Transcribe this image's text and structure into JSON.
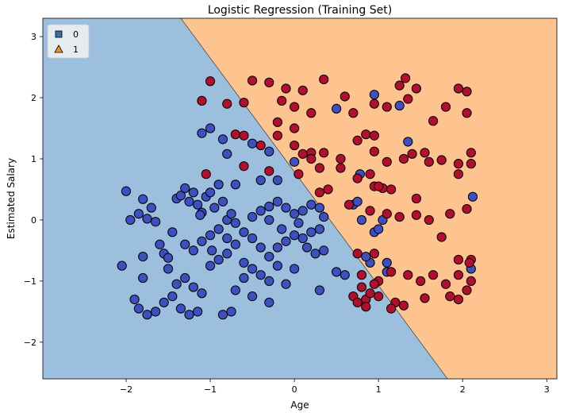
{
  "chart_data": {
    "type": "scatter",
    "title": "Logistic Regression (Training Set)",
    "xlabel": "Age",
    "ylabel": "Estimated Salary",
    "xlim": [
      -2.99,
      3.12
    ],
    "ylim": [
      -2.6,
      3.3
    ],
    "xticks": [
      -2,
      -1,
      0,
      1,
      2,
      3
    ],
    "yticks": [
      -2,
      -1,
      0,
      1,
      2,
      3
    ],
    "grid": false,
    "legend_position": "top-left",
    "decision_boundary": {
      "points": [
        [
          -1.35,
          3.3
        ],
        [
          1.82,
          -2.6
        ]
      ]
    },
    "regions": [
      {
        "class": "0",
        "color": "#9bbfdd"
      },
      {
        "class": "1",
        "color": "#fdc490"
      }
    ],
    "legend": [
      {
        "label": "0",
        "marker": "square",
        "color": "#3a6ea5"
      },
      {
        "label": "1",
        "marker": "triangle",
        "color": "#f28e2b"
      }
    ],
    "series": [
      {
        "name": "0",
        "color": "#3e4fc0",
        "points": [
          [
            -2.0,
            0.47
          ],
          [
            -1.95,
            0.0
          ],
          [
            -1.85,
            0.1
          ],
          [
            -1.8,
            0.34
          ],
          [
            -1.75,
            0.02
          ],
          [
            -1.7,
            0.2
          ],
          [
            -1.65,
            -0.03
          ],
          [
            -1.6,
            -0.4
          ],
          [
            -1.55,
            -0.55
          ],
          [
            -1.5,
            -0.62
          ],
          [
            -1.45,
            -0.2
          ],
          [
            -1.4,
            0.35
          ],
          [
            -1.35,
            0.4
          ],
          [
            -1.3,
            0.52
          ],
          [
            -1.25,
            0.3
          ],
          [
            -1.2,
            0.45
          ],
          [
            -1.15,
            0.25
          ],
          [
            -1.1,
            0.12
          ],
          [
            -1.05,
            0.38
          ],
          [
            -1.0,
            0.45
          ],
          [
            -0.95,
            0.2
          ],
          [
            -0.9,
            0.58
          ],
          [
            -0.85,
            0.3
          ],
          [
            -0.8,
            0.0
          ],
          [
            -0.75,
            0.1
          ],
          [
            -0.7,
            0.58
          ],
          [
            -1.3,
            -0.4
          ],
          [
            -1.2,
            -0.5
          ],
          [
            -1.1,
            -0.35
          ],
          [
            -1.0,
            -0.25
          ],
          [
            -0.9,
            -0.15
          ],
          [
            -0.8,
            -0.3
          ],
          [
            -0.7,
            -0.05
          ],
          [
            -1.5,
            -0.8
          ],
          [
            -1.4,
            -1.05
          ],
          [
            -1.3,
            -0.95
          ],
          [
            -1.2,
            -1.1
          ],
          [
            -1.1,
            -1.2
          ],
          [
            -1.0,
            -0.75
          ],
          [
            -0.9,
            -0.65
          ],
          [
            -0.8,
            -0.55
          ],
          [
            -1.9,
            -1.3
          ],
          [
            -1.85,
            -1.45
          ],
          [
            -1.75,
            -1.55
          ],
          [
            -1.65,
            -1.5
          ],
          [
            -1.55,
            -1.35
          ],
          [
            -1.45,
            -1.25
          ],
          [
            -1.35,
            -1.45
          ],
          [
            -1.25,
            -1.55
          ],
          [
            -1.15,
            -1.5
          ],
          [
            -0.85,
            -1.55
          ],
          [
            -0.75,
            -1.5
          ],
          [
            -2.05,
            -0.75
          ],
          [
            -1.8,
            -0.6
          ],
          [
            -1.8,
            -0.95
          ],
          [
            -0.6,
            -0.2
          ],
          [
            -0.5,
            -0.3
          ],
          [
            -0.4,
            -0.45
          ],
          [
            -0.3,
            -0.6
          ],
          [
            -0.2,
            -0.45
          ],
          [
            -0.1,
            -0.35
          ],
          [
            0.0,
            -0.25
          ],
          [
            0.1,
            -0.3
          ],
          [
            0.2,
            -0.2
          ],
          [
            0.3,
            -0.15
          ],
          [
            -0.5,
            0.05
          ],
          [
            -0.4,
            0.15
          ],
          [
            -0.3,
            0.22
          ],
          [
            -0.2,
            0.3
          ],
          [
            -0.1,
            0.2
          ],
          [
            0.0,
            0.1
          ],
          [
            0.1,
            0.15
          ],
          [
            0.2,
            0.25
          ],
          [
            0.3,
            0.2
          ],
          [
            0.35,
            0.05
          ],
          [
            -0.5,
            -0.8
          ],
          [
            -0.4,
            -0.9
          ],
          [
            -0.3,
            -1.0
          ],
          [
            -0.2,
            -0.75
          ],
          [
            -0.1,
            -1.05
          ],
          [
            -0.5,
            -1.25
          ],
          [
            -0.3,
            -1.35
          ],
          [
            -0.7,
            -1.15
          ],
          [
            -0.6,
            -0.95
          ],
          [
            -0.7,
            -0.4
          ],
          [
            -0.6,
            -0.7
          ],
          [
            -0.4,
            0.65
          ],
          [
            -0.2,
            0.65
          ],
          [
            0.0,
            0.95
          ],
          [
            -0.3,
            1.12
          ],
          [
            -0.5,
            1.25
          ],
          [
            -0.8,
            1.08
          ],
          [
            -0.85,
            1.32
          ],
          [
            -1.1,
            1.42
          ],
          [
            -1.0,
            1.5
          ],
          [
            -1.12,
            0.08
          ],
          [
            -0.98,
            -0.5
          ],
          [
            -0.3,
            0.0
          ],
          [
            -0.15,
            -0.15
          ],
          [
            0.05,
            -0.05
          ],
          [
            0.15,
            -0.45
          ],
          [
            0.25,
            -0.55
          ],
          [
            0.35,
            -0.5
          ],
          [
            0.5,
            -0.85
          ],
          [
            0.6,
            -0.9
          ],
          [
            0.3,
            -1.15
          ],
          [
            0.0,
            -0.8
          ],
          [
            0.7,
            0.25
          ],
          [
            0.75,
            0.3
          ],
          [
            0.78,
            0.75
          ],
          [
            0.8,
            0.0
          ],
          [
            0.95,
            -0.2
          ],
          [
            1.05,
            0.0
          ],
          [
            1.1,
            -0.7
          ],
          [
            1.1,
            -0.85
          ],
          [
            0.9,
            -0.7
          ],
          [
            0.85,
            -0.6
          ],
          [
            0.5,
            1.82
          ],
          [
            0.95,
            2.05
          ],
          [
            1.25,
            1.87
          ],
          [
            1.35,
            1.28
          ],
          [
            2.12,
            0.38
          ],
          [
            2.1,
            -0.8
          ],
          [
            1.0,
            -0.15
          ]
        ]
      },
      {
        "name": "1",
        "color": "#b20f2e",
        "points": [
          [
            -1.0,
            2.27
          ],
          [
            -1.1,
            1.95
          ],
          [
            -0.8,
            1.9
          ],
          [
            -0.6,
            1.92
          ],
          [
            -0.5,
            2.28
          ],
          [
            -0.3,
            2.25
          ],
          [
            -0.1,
            2.15
          ],
          [
            0.1,
            2.12
          ],
          [
            0.35,
            2.3
          ],
          [
            0.6,
            2.02
          ],
          [
            -0.15,
            1.95
          ],
          [
            0.0,
            1.85
          ],
          [
            0.2,
            1.75
          ],
          [
            -0.2,
            1.6
          ],
          [
            0.0,
            1.5
          ],
          [
            0.7,
            1.75
          ],
          [
            0.95,
            1.9
          ],
          [
            1.1,
            1.85
          ],
          [
            1.25,
            2.2
          ],
          [
            1.32,
            2.32
          ],
          [
            1.45,
            2.15
          ],
          [
            1.35,
            1.98
          ],
          [
            1.65,
            1.62
          ],
          [
            1.8,
            1.85
          ],
          [
            1.95,
            2.15
          ],
          [
            2.05,
            2.1
          ],
          [
            2.05,
            1.75
          ],
          [
            -0.7,
            1.4
          ],
          [
            -0.6,
            1.38
          ],
          [
            -0.4,
            1.22
          ],
          [
            -0.2,
            1.38
          ],
          [
            0.0,
            1.22
          ],
          [
            0.1,
            1.08
          ],
          [
            0.2,
            1.1
          ],
          [
            0.35,
            1.1
          ],
          [
            0.55,
            1.0
          ],
          [
            0.85,
            1.4
          ],
          [
            0.95,
            1.38
          ],
          [
            0.75,
            1.3
          ],
          [
            0.95,
            1.12
          ],
          [
            1.1,
            0.95
          ],
          [
            1.3,
            1.0
          ],
          [
            1.4,
            1.08
          ],
          [
            1.55,
            1.1
          ],
          [
            1.6,
            0.95
          ],
          [
            1.75,
            0.98
          ],
          [
            1.95,
            0.92
          ],
          [
            2.1,
            1.1
          ],
          [
            2.1,
            0.92
          ],
          [
            -0.6,
            0.88
          ],
          [
            -0.3,
            0.8
          ],
          [
            0.05,
            0.75
          ],
          [
            0.3,
            0.85
          ],
          [
            0.55,
            0.85
          ],
          [
            0.75,
            0.68
          ],
          [
            0.9,
            0.75
          ],
          [
            0.95,
            0.55
          ],
          [
            1.05,
            0.52
          ],
          [
            1.15,
            0.5
          ],
          [
            1.45,
            0.35
          ],
          [
            1.95,
            0.75
          ],
          [
            -1.05,
            0.75
          ],
          [
            0.3,
            0.45
          ],
          [
            0.4,
            0.5
          ],
          [
            0.65,
            0.25
          ],
          [
            0.9,
            0.15
          ],
          [
            1.1,
            0.1
          ],
          [
            1.25,
            0.05
          ],
          [
            1.45,
            0.08
          ],
          [
            1.6,
            0.0
          ],
          [
            1.85,
            0.1
          ],
          [
            2.05,
            0.18
          ],
          [
            1.75,
            -0.28
          ],
          [
            0.75,
            -0.55
          ],
          [
            0.95,
            -0.55
          ],
          [
            1.0,
            -1.0
          ],
          [
            0.95,
            -1.05
          ],
          [
            1.15,
            -0.85
          ],
          [
            1.35,
            -0.9
          ],
          [
            1.5,
            -1.0
          ],
          [
            1.65,
            -0.9
          ],
          [
            1.8,
            -1.05
          ],
          [
            1.95,
            -0.9
          ],
          [
            2.1,
            -1.0
          ],
          [
            2.05,
            -1.15
          ],
          [
            1.95,
            -1.3
          ],
          [
            1.85,
            -1.25
          ],
          [
            1.95,
            -0.65
          ],
          [
            2.1,
            -0.65
          ],
          [
            0.7,
            -1.25
          ],
          [
            0.75,
            -1.35
          ],
          [
            0.85,
            -1.3
          ],
          [
            0.9,
            -1.2
          ],
          [
            0.85,
            -1.42
          ],
          [
            0.8,
            -1.1
          ],
          [
            1.0,
            -1.25
          ],
          [
            1.2,
            -1.35
          ],
          [
            1.3,
            -1.4
          ],
          [
            1.15,
            -1.45
          ],
          [
            1.55,
            -1.28
          ],
          [
            2.08,
            -0.7
          ],
          [
            0.8,
            -0.9
          ],
          [
            0.2,
            1.0
          ],
          [
            1.0,
            0.55
          ]
        ]
      }
    ]
  }
}
